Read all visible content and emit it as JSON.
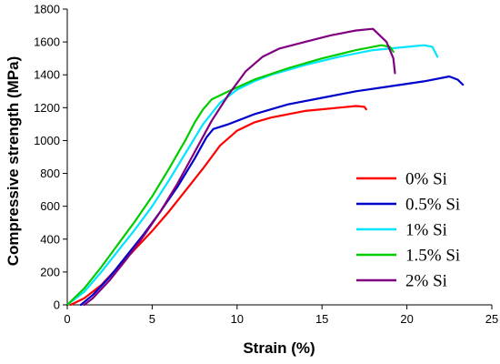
{
  "chart_data": {
    "type": "line",
    "title": "",
    "xlabel": "Strain (%)",
    "ylabel": "Compressive strength (MPa)",
    "xlim": [
      0,
      25
    ],
    "ylim": [
      0,
      1800
    ],
    "xticks": [
      "0",
      "5",
      "10",
      "15",
      "20",
      "25"
    ],
    "yticks": [
      "0",
      "200",
      "400",
      "600",
      "800",
      "1000",
      "1200",
      "1400",
      "1600",
      "1800"
    ],
    "grid": false,
    "legend_position": "right",
    "series": [
      {
        "name": "0% Si",
        "color": "#ff0000",
        "x": [
          0.2,
          1,
          2,
          3,
          4,
          5,
          6,
          7,
          8,
          9,
          10,
          11,
          12,
          13,
          14,
          15,
          16,
          17,
          17.5,
          17.6
        ],
        "y": [
          0,
          40,
          120,
          230,
          340,
          450,
          570,
          700,
          830,
          970,
          1060,
          1110,
          1140,
          1160,
          1180,
          1190,
          1200,
          1210,
          1205,
          1190
        ]
      },
      {
        "name": "0.5% Si",
        "color": "#0000cc",
        "x": [
          0.8,
          1.5,
          2.5,
          3.5,
          4.5,
          5.5,
          6.5,
          7.5,
          8.2,
          8.6,
          9.5,
          11,
          13,
          15,
          17,
          19,
          21,
          22.5,
          23.0,
          23.3
        ],
        "y": [
          0,
          60,
          170,
          300,
          430,
          570,
          720,
          890,
          1020,
          1070,
          1100,
          1160,
          1220,
          1260,
          1300,
          1330,
          1360,
          1390,
          1370,
          1340
        ]
      },
      {
        "name": "1% Si",
        "color": "#00e5ff",
        "x": [
          0,
          1,
          2,
          3,
          4,
          5,
          6,
          7,
          8,
          9,
          10,
          11,
          12,
          14,
          16,
          18,
          20,
          21,
          21.5,
          21.8
        ],
        "y": [
          0,
          80,
          200,
          330,
          460,
          600,
          760,
          930,
          1100,
          1230,
          1310,
          1360,
          1400,
          1460,
          1510,
          1550,
          1570,
          1580,
          1570,
          1510
        ]
      },
      {
        "name": "1.5% Si",
        "color": "#00cc00",
        "x": [
          0,
          1,
          2,
          3,
          4,
          5,
          6,
          7,
          7.5,
          8,
          8.5,
          9.5,
          11,
          13,
          15,
          17,
          18.5,
          19,
          19.2
        ],
        "y": [
          0,
          100,
          230,
          370,
          510,
          660,
          830,
          1010,
          1110,
          1190,
          1250,
          1300,
          1370,
          1440,
          1500,
          1550,
          1580,
          1570,
          1540
        ]
      },
      {
        "name": "2% Si",
        "color": "#800080",
        "x": [
          1,
          1.5,
          2.5,
          3.5,
          4.5,
          5.5,
          6.5,
          7.5,
          8.5,
          9.5,
          10.5,
          11.5,
          12.5,
          14,
          15.5,
          17,
          18,
          18.8,
          19.2,
          19.3
        ],
        "y": [
          0,
          40,
          150,
          280,
          420,
          570,
          740,
          930,
          1120,
          1280,
          1420,
          1510,
          1560,
          1600,
          1640,
          1670,
          1680,
          1600,
          1500,
          1410
        ]
      }
    ]
  }
}
